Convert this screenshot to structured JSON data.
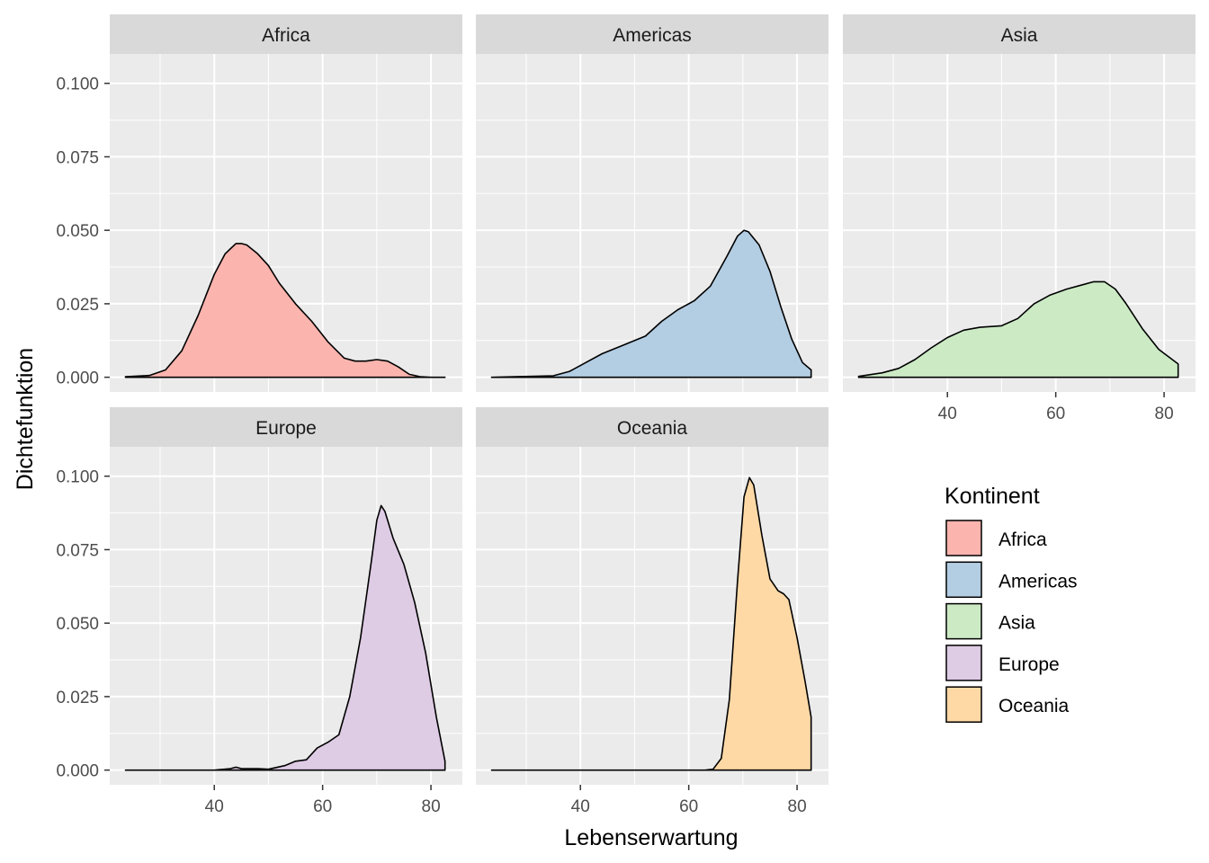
{
  "chart_data": {
    "type": "area",
    "subtype": "faceted density",
    "xlabel": "Lebenserwartung",
    "ylabel": "Dichtefunktion",
    "xlim": [
      20.7,
      85.8
    ],
    "ylim": [
      -0.005,
      0.11
    ],
    "x_ticks": [
      40,
      60,
      80
    ],
    "y_ticks": [
      "0.000",
      "0.025",
      "0.050",
      "0.075",
      "0.100"
    ],
    "grid": true,
    "legend": {
      "title": "Kontinent",
      "position": "right"
    },
    "series": [
      {
        "name": "Africa",
        "color": "#FBB4AE",
        "x": [
          23.6,
          28,
          31,
          34,
          37,
          40,
          42,
          44,
          45,
          46,
          48,
          50,
          52,
          55,
          58,
          61,
          64,
          66,
          68,
          70,
          72,
          74,
          76,
          78,
          80,
          82.6
        ],
        "y": [
          0.0002,
          0.0006,
          0.0025,
          0.009,
          0.021,
          0.035,
          0.042,
          0.0455,
          0.0455,
          0.045,
          0.042,
          0.038,
          0.032,
          0.025,
          0.019,
          0.012,
          0.0065,
          0.0055,
          0.0055,
          0.006,
          0.0055,
          0.0035,
          0.001,
          0.0002,
          0.0,
          0.0
        ]
      },
      {
        "name": "Americas",
        "color": "#B3CDE3",
        "x": [
          23.6,
          35,
          38,
          41,
          44,
          48,
          52,
          55,
          58,
          61,
          64,
          67,
          69,
          70.2,
          71,
          73,
          75,
          77,
          79,
          81,
          82.6
        ],
        "y": [
          0.0,
          0.0005,
          0.002,
          0.005,
          0.008,
          0.011,
          0.014,
          0.019,
          0.023,
          0.026,
          0.031,
          0.041,
          0.048,
          0.05,
          0.0495,
          0.045,
          0.036,
          0.024,
          0.013,
          0.005,
          0.0025
        ]
      },
      {
        "name": "Asia",
        "color": "#CCEBC5",
        "x": [
          23.6,
          28,
          31,
          34,
          37,
          40,
          43,
          46,
          50,
          53,
          56,
          59,
          62,
          65,
          67,
          69,
          71,
          73,
          76,
          79,
          82.6
        ],
        "y": [
          0.0003,
          0.0015,
          0.003,
          0.006,
          0.01,
          0.0135,
          0.016,
          0.017,
          0.0175,
          0.02,
          0.025,
          0.028,
          0.03,
          0.0315,
          0.0325,
          0.0325,
          0.03,
          0.025,
          0.0165,
          0.0095,
          0.0045
        ]
      },
      {
        "name": "Europe",
        "color": "#DECBE4",
        "x": [
          23.6,
          40,
          43,
          44,
          45,
          47,
          48,
          50,
          53,
          55,
          57,
          59,
          61,
          63,
          65,
          67,
          69,
          70,
          70.8,
          71.5,
          73,
          75,
          77,
          79,
          81,
          82.6
        ],
        "y": [
          0.0,
          0.0,
          0.0005,
          0.001,
          0.0005,
          0.0005,
          0.0005,
          0.0003,
          0.0015,
          0.003,
          0.0035,
          0.0075,
          0.0095,
          0.012,
          0.025,
          0.045,
          0.071,
          0.085,
          0.09,
          0.088,
          0.079,
          0.07,
          0.057,
          0.04,
          0.018,
          0.003
        ]
      },
      {
        "name": "Oceania",
        "color": "#FED9A6",
        "x": [
          23.6,
          63,
          64.5,
          66,
          67.5,
          69,
          70.2,
          71.2,
          72,
          73.5,
          75,
          76.5,
          77.5,
          78.5,
          80,
          81.5,
          82.6
        ],
        "y": [
          0.0,
          0.0,
          0.0003,
          0.004,
          0.024,
          0.064,
          0.093,
          0.0995,
          0.097,
          0.08,
          0.065,
          0.061,
          0.06,
          0.058,
          0.045,
          0.03,
          0.018
        ]
      }
    ]
  }
}
